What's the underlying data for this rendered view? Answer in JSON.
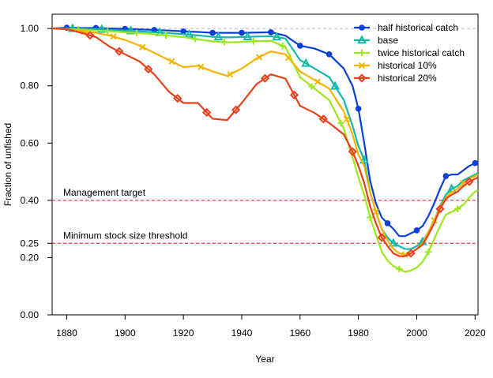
{
  "chart_data": {
    "type": "line",
    "xlabel": "Year",
    "ylabel": "Fraction of unfished",
    "xlim": [
      1875,
      2021
    ],
    "ylim": [
      0,
      1.05
    ],
    "x_ticks": [
      1880,
      1900,
      1920,
      1940,
      1960,
      1980,
      2000,
      2020
    ],
    "x_tick_labels": [
      "1880",
      "1900",
      "1920",
      "1940",
      "1960",
      "1980",
      "2000",
      "2020"
    ],
    "y_ticks": [
      0,
      0.2,
      0.25,
      0.4,
      0.6,
      0.8,
      1.0
    ],
    "y_tick_labels": [
      "0.00",
      "0.20",
      "0.25",
      "0.40",
      "0.60",
      "0.80",
      "1.00"
    ],
    "grid": false,
    "legend_position": "top-right",
    "reference_lines": [
      {
        "y": 1.0,
        "color": "#bbbbbb",
        "style": "dashed",
        "label": ""
      },
      {
        "y": 0.4,
        "color": "#dd1111",
        "style": "dashed",
        "label": "Management target"
      },
      {
        "y": 0.25,
        "color": "#dd1111",
        "style": "dashed",
        "label": "Minimum stock size threshold"
      }
    ],
    "x": [
      1875,
      1880,
      1885,
      1890,
      1895,
      1900,
      1905,
      1910,
      1915,
      1920,
      1925,
      1930,
      1935,
      1940,
      1945,
      1950,
      1955,
      1960,
      1965,
      1970,
      1975,
      1978,
      1980,
      1982,
      1984,
      1986,
      1988,
      1990,
      1992,
      1994,
      1996,
      1998,
      2000,
      2002,
      2004,
      2006,
      2008,
      2010,
      2012,
      2014,
      2016,
      2018,
      2020,
      2021
    ],
    "series": [
      {
        "name": "half historical catch",
        "color": "#0a3fd8",
        "marker": "circle",
        "values": [
          1.0,
          1.003,
          1.002,
          1.002,
          1.0,
          0.999,
          0.997,
          0.995,
          0.993,
          0.99,
          0.988,
          0.985,
          0.985,
          0.985,
          0.986,
          0.987,
          0.975,
          0.94,
          0.93,
          0.91,
          0.86,
          0.8,
          0.72,
          0.6,
          0.47,
          0.39,
          0.34,
          0.32,
          0.3,
          0.275,
          0.275,
          0.285,
          0.295,
          0.31,
          0.345,
          0.39,
          0.44,
          0.485,
          0.49,
          0.49,
          0.505,
          0.52,
          0.53,
          0.535
        ]
      },
      {
        "name": "base",
        "color": "#12b8a8",
        "marker": "triangle",
        "values": [
          1.0,
          1.0,
          0.999,
          0.998,
          0.995,
          0.993,
          0.99,
          0.987,
          0.984,
          0.98,
          0.976,
          0.971,
          0.969,
          0.97,
          0.972,
          0.973,
          0.965,
          0.89,
          0.86,
          0.83,
          0.75,
          0.66,
          0.59,
          0.54,
          0.43,
          0.36,
          0.3,
          0.27,
          0.25,
          0.24,
          0.23,
          0.23,
          0.24,
          0.255,
          0.29,
          0.33,
          0.38,
          0.42,
          0.44,
          0.45,
          0.47,
          0.48,
          0.49,
          0.495
        ]
      },
      {
        "name": "twice historical catch",
        "color": "#9be81c",
        "marker": "plus",
        "values": [
          1.0,
          0.998,
          0.996,
          0.993,
          0.99,
          0.987,
          0.984,
          0.98,
          0.975,
          0.97,
          0.962,
          0.955,
          0.952,
          0.953,
          0.956,
          0.957,
          0.935,
          0.83,
          0.79,
          0.75,
          0.65,
          0.55,
          0.48,
          0.42,
          0.34,
          0.28,
          0.22,
          0.19,
          0.17,
          0.16,
          0.15,
          0.155,
          0.165,
          0.185,
          0.22,
          0.265,
          0.31,
          0.35,
          0.36,
          0.37,
          0.385,
          0.41,
          0.43,
          0.435
        ]
      },
      {
        "name": "historical 10%",
        "color": "#f2b400",
        "marker": "cross",
        "values": [
          1.0,
          0.998,
          0.99,
          0.985,
          0.975,
          0.96,
          0.94,
          0.915,
          0.89,
          0.865,
          0.87,
          0.85,
          0.835,
          0.86,
          0.895,
          0.92,
          0.91,
          0.85,
          0.82,
          0.79,
          0.71,
          0.63,
          0.56,
          0.52,
          0.43,
          0.36,
          0.3,
          0.26,
          0.23,
          0.215,
          0.21,
          0.215,
          0.23,
          0.25,
          0.29,
          0.33,
          0.375,
          0.41,
          0.43,
          0.44,
          0.46,
          0.475,
          0.485,
          0.49
        ]
      },
      {
        "name": "historical 20%",
        "color": "#e8401a",
        "marker": "diamond",
        "values": [
          1.0,
          0.998,
          0.985,
          0.97,
          0.935,
          0.91,
          0.885,
          0.84,
          0.78,
          0.74,
          0.74,
          0.685,
          0.68,
          0.74,
          0.805,
          0.84,
          0.825,
          0.73,
          0.705,
          0.67,
          0.63,
          0.57,
          0.52,
          0.46,
          0.38,
          0.32,
          0.27,
          0.24,
          0.215,
          0.205,
          0.205,
          0.215,
          0.23,
          0.245,
          0.28,
          0.32,
          0.37,
          0.405,
          0.42,
          0.43,
          0.45,
          0.465,
          0.475,
          0.48
        ]
      }
    ]
  }
}
